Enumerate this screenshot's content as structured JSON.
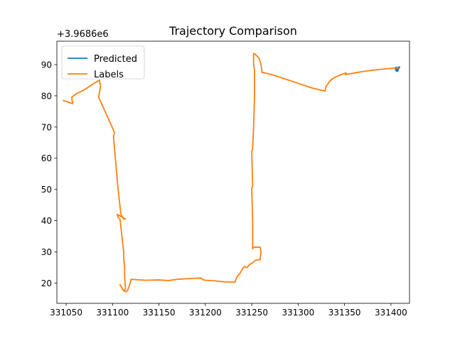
{
  "chart_data": {
    "type": "line",
    "title": "Trajectory Comparison",
    "xlabel": "",
    "ylabel": "",
    "y_offset_label": "+3.9686e6",
    "xlim": [
      331040,
      331420
    ],
    "ylim": [
      13.5,
      97.5
    ],
    "x_ticks": [
      331050,
      331100,
      331150,
      331200,
      331250,
      331300,
      331350,
      331400
    ],
    "y_ticks": [
      20,
      30,
      40,
      50,
      60,
      70,
      80,
      90
    ],
    "grid": false,
    "legend_position": "top-left",
    "series": [
      {
        "name": "Predicted",
        "color": "#1f77b4",
        "x": [
          331405,
          331406,
          331407,
          331408,
          331409,
          331408,
          331407,
          331406,
          331405,
          331406,
          331407,
          331408
        ],
        "y": [
          89.0,
          88.2,
          87.9,
          88.6,
          89.2,
          88.9,
          88.3,
          88.0,
          88.5,
          89.1,
          88.7,
          89.0
        ]
      },
      {
        "name": "Labels",
        "color": "#ff7f0e",
        "x": [
          331047,
          331057,
          331056,
          331060,
          331070,
          331080,
          331086,
          331087,
          331085,
          331092,
          331101,
          331102,
          331101,
          331103,
          331106,
          331109,
          331112,
          331114,
          331105,
          331106,
          331108,
          331112,
          331112,
          331113,
          331113,
          331114,
          331112,
          331108,
          331111,
          331114,
          331116,
          331118,
          331120,
          331135,
          331150,
          331160,
          331170,
          331185,
          331195,
          331198,
          331200,
          331210,
          331220,
          331232,
          331234,
          331237,
          331240,
          331242,
          331244,
          331245,
          331248,
          331251,
          331254,
          331259,
          331260,
          331259,
          331252,
          331251,
          331251,
          331250,
          331250,
          331251,
          331250,
          331251,
          331251,
          331252,
          331253,
          331253,
          331252,
          331252,
          331252,
          331253,
          331254,
          331258,
          331260,
          331261,
          331265,
          331275,
          331285,
          331300,
          331315,
          331329,
          331330,
          331335,
          331340,
          331348,
          331352,
          331351,
          331360,
          331370,
          331380,
          331390,
          331400,
          331406,
          331408
        ],
        "y": [
          78.5,
          77.5,
          79.5,
          80.5,
          82.0,
          84.0,
          85.0,
          83.0,
          79.5,
          75.0,
          69.0,
          68.0,
          67.0,
          60.0,
          50.0,
          42.0,
          40.5,
          40.5,
          42.0,
          41.0,
          40.5,
          30.0,
          28.0,
          25.0,
          22.0,
          18.0,
          17.5,
          19.5,
          18.0,
          17.2,
          17.5,
          19.0,
          21.2,
          20.9,
          21.0,
          20.8,
          21.2,
          21.5,
          21.6,
          21.0,
          20.9,
          20.7,
          20.4,
          20.3,
          22.0,
          23.0,
          24.5,
          25.3,
          25.0,
          25.0,
          26.0,
          26.5,
          27.3,
          27.5,
          30.0,
          31.5,
          31.5,
          31.0,
          40.0,
          50.0,
          50.5,
          51.0,
          62.0,
          63.0,
          63.5,
          70.0,
          80.0,
          88.0,
          90.0,
          92.0,
          93.5,
          93.5,
          93.2,
          92.0,
          90.0,
          87.5,
          87.3,
          86.5,
          85.5,
          84.0,
          82.5,
          81.5,
          83.0,
          85.0,
          86.0,
          87.0,
          87.3,
          86.8,
          87.3,
          87.8,
          88.2,
          88.5,
          88.8,
          89.0,
          88.8
        ]
      }
    ]
  }
}
